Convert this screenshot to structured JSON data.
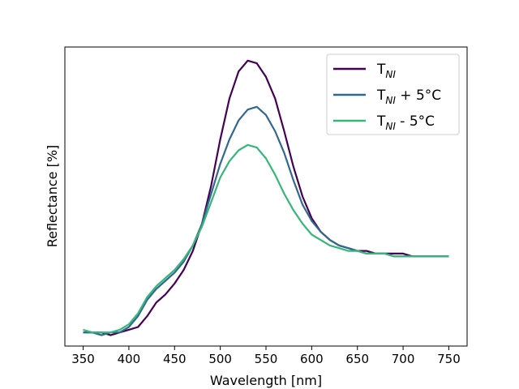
{
  "chart_data": {
    "type": "line",
    "xlabel": "Wavelength [nm]",
    "ylabel": "Reflectance [%]",
    "xlim": [
      330,
      770
    ],
    "ylim": [
      -0.05,
      1.05
    ],
    "x_ticks": [
      "350",
      "400",
      "450",
      "500",
      "550",
      "600",
      "650",
      "700",
      "750"
    ],
    "y_ticks_visible": false,
    "grid": false,
    "legend_position": "top-right",
    "series": [
      {
        "name": "T_NI",
        "label_main": "T",
        "label_sub": "NI",
        "label_suffix": "",
        "color": "#440154",
        "x": [
          350,
          360,
          370,
          380,
          390,
          400,
          410,
          420,
          430,
          440,
          450,
          460,
          470,
          480,
          490,
          500,
          510,
          520,
          530,
          540,
          550,
          560,
          570,
          580,
          590,
          600,
          610,
          620,
          630,
          640,
          650,
          660,
          670,
          680,
          690,
          700,
          710,
          720,
          730,
          740,
          750
        ],
        "y": [
          0.0,
          0.0,
          0.0,
          -0.01,
          0.0,
          0.01,
          0.02,
          0.06,
          0.11,
          0.14,
          0.18,
          0.23,
          0.3,
          0.4,
          0.54,
          0.71,
          0.86,
          0.96,
          1.0,
          0.99,
          0.94,
          0.86,
          0.74,
          0.61,
          0.5,
          0.42,
          0.37,
          0.34,
          0.32,
          0.31,
          0.3,
          0.3,
          0.29,
          0.29,
          0.29,
          0.29,
          0.28,
          0.28,
          0.28,
          0.28,
          0.28
        ]
      },
      {
        "name": "T_NI + 5°C",
        "label_main": "T",
        "label_sub": "NI",
        "label_suffix": " + 5°C",
        "color": "#31688e",
        "x": [
          350,
          360,
          370,
          380,
          390,
          400,
          410,
          420,
          430,
          440,
          450,
          460,
          470,
          480,
          490,
          500,
          510,
          520,
          530,
          540,
          550,
          560,
          570,
          580,
          590,
          600,
          610,
          620,
          630,
          640,
          650,
          660,
          670,
          680,
          690,
          700,
          710,
          720,
          730,
          740,
          750
        ],
        "y": [
          0.0,
          0.0,
          -0.01,
          0.0,
          0.0,
          0.02,
          0.06,
          0.12,
          0.16,
          0.19,
          0.22,
          0.26,
          0.32,
          0.4,
          0.51,
          0.62,
          0.71,
          0.78,
          0.82,
          0.83,
          0.8,
          0.74,
          0.66,
          0.56,
          0.47,
          0.41,
          0.37,
          0.34,
          0.32,
          0.31,
          0.3,
          0.29,
          0.29,
          0.29,
          0.28,
          0.28,
          0.28,
          0.28,
          0.28,
          0.28,
          0.28
        ]
      },
      {
        "name": "T_NI - 5°C",
        "label_main": "T",
        "label_sub": "NI",
        "label_suffix": " - 5°C",
        "color": "#35b779",
        "x": [
          350,
          360,
          370,
          380,
          390,
          400,
          410,
          420,
          430,
          440,
          450,
          460,
          470,
          480,
          490,
          500,
          510,
          520,
          530,
          540,
          550,
          560,
          570,
          580,
          590,
          600,
          610,
          620,
          630,
          640,
          650,
          660,
          670,
          680,
          690,
          700,
          710,
          720,
          730,
          740,
          750
        ],
        "y": [
          0.01,
          0.0,
          0.0,
          0.0,
          0.01,
          0.03,
          0.07,
          0.13,
          0.17,
          0.2,
          0.23,
          0.27,
          0.32,
          0.39,
          0.48,
          0.57,
          0.63,
          0.67,
          0.69,
          0.68,
          0.64,
          0.58,
          0.51,
          0.45,
          0.4,
          0.36,
          0.34,
          0.32,
          0.31,
          0.3,
          0.3,
          0.29,
          0.29,
          0.29,
          0.28,
          0.28,
          0.28,
          0.28,
          0.28,
          0.28,
          0.28
        ]
      }
    ]
  }
}
